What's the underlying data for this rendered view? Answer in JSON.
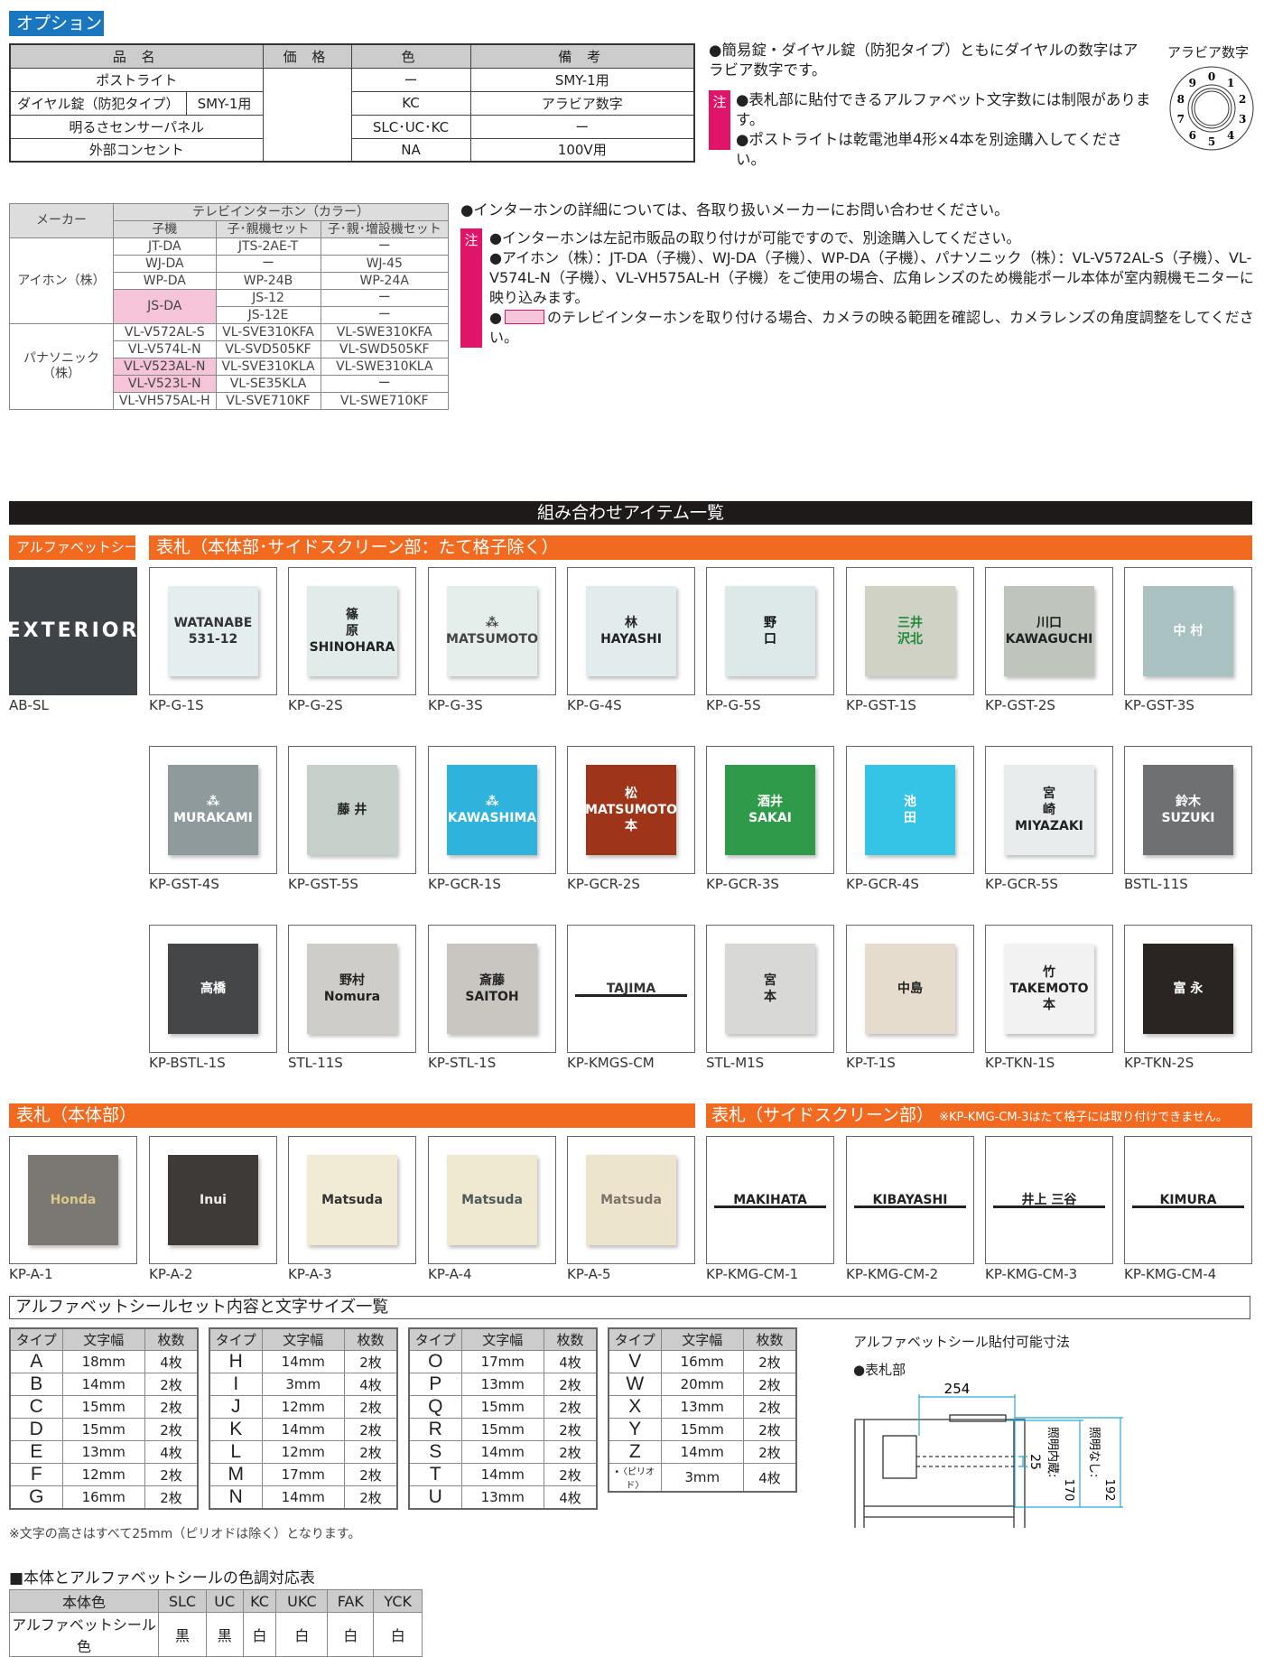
{
  "options": {
    "badge": "オプション",
    "headers": [
      "品 名",
      "価 格",
      "色",
      "備 考"
    ],
    "rows": [
      {
        "name": "ポストライト",
        "sub": "",
        "color": "ー",
        "note": "SMY-1用"
      },
      {
        "name": "ダイヤル錠（防犯タイプ）",
        "sub": "SMY-1用",
        "color": "KC",
        "note": "アラビア数字"
      },
      {
        "name": "明るさセンサーパネル",
        "sub": "",
        "color": "SLC･UC･KC",
        "note": "ー"
      },
      {
        "name": "外部コンセント",
        "sub": "",
        "color": "NA",
        "note": "100V用"
      }
    ],
    "note1": "●簡易錠・ダイヤル錠（防犯タイプ）ともにダイヤルの数字はアラビア数字です。",
    "chu_label": "注",
    "chu_notes": [
      "●表札部に貼付できるアルファベット文字数には制限があります。",
      "●ポストライトは乾電池単4形×4本を別途購入してください。"
    ],
    "dial_label": "アラビア数字",
    "dial_digits": [
      "0",
      "1",
      "2",
      "3",
      "4",
      "5",
      "6",
      "7",
      "8",
      "9"
    ]
  },
  "intercom": {
    "maker_header": "メーカー",
    "group_header": "テレビインターホン（カラー）",
    "sub_headers": [
      "子機",
      "子･親機セット",
      "子･親･増設機セット"
    ],
    "highlight_color": "#f6c4d8",
    "highlighted": [
      "JS-DA",
      "VL-V523AL-N",
      "VL-V523L-N"
    ],
    "makers": [
      {
        "name": "アイホン（株）",
        "rows": [
          [
            "JT-DA",
            "JTS-2AE-T",
            "ー"
          ],
          [
            "WJ-DA",
            "ー",
            "WJ-45"
          ],
          [
            "WP-DA",
            "WP-24B",
            "WP-24A"
          ],
          [
            "JS-DA",
            "JS-12",
            "ー"
          ],
          [
            null,
            "JS-12E",
            "ー"
          ]
        ]
      },
      {
        "name": "パナソニック（株）",
        "rows": [
          [
            "VL-V572AL-S",
            "VL-SVE310KFA",
            "VL-SWE310KFA"
          ],
          [
            "VL-V574L-N",
            "VL-SVD505KF",
            "VL-SWD505KF"
          ],
          [
            "VL-V523AL-N",
            "VL-SVE310KLA",
            "VL-SWE310KLA"
          ],
          [
            "VL-V523L-N",
            "VL-SE35KLA",
            "ー"
          ],
          [
            "VL-VH575AL-H",
            "VL-SVE710KF",
            "VL-SWE710KF"
          ]
        ]
      }
    ],
    "note1": "●インターホンの詳細については、各取り扱いメーカーにお問い合わせください。",
    "chu_label": "注",
    "chu_notes": [
      "●インターホンは左記市販品の取り付けが可能ですので、別途購入してください。",
      "●アイホン（株）：JT-DA（子機）、WJ-DA（子機）、WP-DA（子機）、パナソニック（株）：VL-V572AL-S（子機）、VL-V574L-N（子機）、VL-VH575AL-H（子機）をご使用の場合、広角レンズのため機能ポール本体が室内親機モニターに映り込みます。"
    ],
    "chu_note3_prefix": "●",
    "chu_note3": "のテレビインターホンを取り付ける場合、カメラの映る範囲を確認し、カメラレンズの角度調整をしてください。"
  },
  "items": {
    "title": "組み合わせアイテム一覧",
    "sec_alpha": "アルファベットシール",
    "sec_main": "表札（本体部･サイドスクリーン部：たて格子除く）",
    "sec_body": "表札（本体部）",
    "sec_side": "表札（サイドスクリーン部）",
    "sec_side_note": "※KP-KMG-CM-3はたて格子には取り付けできません。",
    "rows": [
      [
        {
          "label": "AB-SL",
          "text": "EXTERIOR",
          "bg": "#3d4347",
          "fg": "#ffffff",
          "full": true
        },
        {
          "label": "KP-G-1S",
          "text": "WATANABE\n531-12",
          "bg": "#e4eeee",
          "fg": "#333333"
        },
        {
          "label": "KP-G-2S",
          "text": "篠\n原\nSHINOHARA",
          "bg": "#e1ebea",
          "fg": "#222222"
        },
        {
          "label": "KP-G-3S",
          "text": "⁂\nMATSUMOTO",
          "bg": "#e6eeec",
          "fg": "#444444"
        },
        {
          "label": "KP-G-4S",
          "text": "林\nHAYASHI",
          "bg": "#e3ecec",
          "fg": "#222222"
        },
        {
          "label": "KP-G-5S",
          "text": "野\n口",
          "bg": "#dce9e8",
          "fg": "#111111"
        },
        {
          "label": "KP-GST-1S",
          "text": "三井\n沢北",
          "bg": "#cfd2c4",
          "fg": "#1d8a3a"
        },
        {
          "label": "KP-GST-2S",
          "text": "川口\nKAWAGUCHI",
          "bg": "#bfc4bd",
          "fg": "#222222"
        },
        {
          "label": "KP-GST-3S",
          "text": "中 村",
          "bg": "#a9c1c0",
          "fg": "#ffffff"
        }
      ],
      [
        {
          "label": "KP-GST-4S",
          "text": "⁂\nMURAKAMI",
          "bg": "#8e9a9b",
          "fg": "#ffffff"
        },
        {
          "label": "KP-GST-5S",
          "text": "藤 井",
          "bg": "#c6d0cb",
          "fg": "#222222"
        },
        {
          "label": "KP-GCR-1S",
          "text": "⁂\nKAWASHIMA",
          "bg": "#2fb3dc",
          "fg": "#ffffff"
        },
        {
          "label": "KP-GCR-2S",
          "text": "松\nMATSUMOTO\n本",
          "bg": "#9e3418",
          "fg": "#ffffff"
        },
        {
          "label": "KP-GCR-3S",
          "text": "酒井\nSAKAI",
          "bg": "#2e9a4a",
          "fg": "#ffffff"
        },
        {
          "label": "KP-GCR-4S",
          "text": "池\n田",
          "bg": "#35c3e6",
          "fg": "#ffffff"
        },
        {
          "label": "KP-GCR-5S",
          "text": "宮\n崎\nMIYAZAKI",
          "bg": "#e9ecec",
          "fg": "#222222"
        },
        {
          "label": "BSTL-11S",
          "text": "鈴木\nSUZUKI",
          "bg": "#6e7071",
          "fg": "#ffffff"
        }
      ],
      [
        {
          "label": "KP-BSTL-1S",
          "text": "高橋",
          "bg": "#454647",
          "fg": "#ffffff"
        },
        {
          "label": "STL-11S",
          "text": "野村\nNomura",
          "bg": "#cfcdc9",
          "fg": "#222222"
        },
        {
          "label": "KP-STL-1S",
          "text": "斎藤\nSAITOH",
          "bg": "#c9c6c1",
          "fg": "#222222"
        },
        {
          "label": "KP-KMGS-CM",
          "text": "TAJIMA",
          "bg": "#ffffff",
          "fg": "#333333",
          "bar": true
        },
        {
          "label": "STL-M1S",
          "text": "宮\n本",
          "bg": "#d8d8d6",
          "fg": "#222222"
        },
        {
          "label": "KP-T-1S",
          "text": "中島",
          "bg": "#e6dccd",
          "fg": "#222222"
        },
        {
          "label": "KP-TKN-1S",
          "text": "竹\nTAKEMOTO\n本",
          "bg": "#f2f2f2",
          "fg": "#222222"
        },
        {
          "label": "KP-TKN-2S",
          "text": "富 永",
          "bg": "#2a2522",
          "fg": "#ffffff"
        }
      ],
      [
        {
          "label": "KP-A-1",
          "text": "Honda",
          "bg": "#7b7772",
          "fg": "#d8c98a"
        },
        {
          "label": "KP-A-2",
          "text": "Inui",
          "bg": "#3d3a37",
          "fg": "#eeeeee"
        },
        {
          "label": "KP-A-3",
          "text": "Matsuda",
          "bg": "#f1ead4",
          "fg": "#333333"
        },
        {
          "label": "KP-A-4",
          "text": "Matsuda",
          "bg": "#efe8d0",
          "fg": "#4e5a5a"
        },
        {
          "label": "KP-A-5",
          "text": "Matsuda",
          "bg": "#ece4cc",
          "fg": "#7d7167"
        },
        {
          "label": "KP-KMG-CM-1",
          "text": "MAKIHATA",
          "bg": "#ffffff",
          "fg": "#222222",
          "bar": true
        },
        {
          "label": "KP-KMG-CM-2",
          "text": "KIBAYASHI",
          "bg": "#ffffff",
          "fg": "#222222",
          "bar": true
        },
        {
          "label": "KP-KMG-CM-3",
          "text": "井上 三谷",
          "bg": "#ffffff",
          "fg": "#222222",
          "bar": true
        },
        {
          "label": "KP-KMG-CM-4",
          "text": "KIMURA",
          "bg": "#ffffff",
          "fg": "#222222",
          "bar": true
        }
      ]
    ]
  },
  "alphabet": {
    "title": "アルファベットシールセット内容と文字サイズ一覧",
    "headers": [
      "タイプ",
      "文字幅",
      "枚数"
    ],
    "groups": [
      [
        [
          "A",
          "18mm",
          "4枚"
        ],
        [
          "B",
          "14mm",
          "2枚"
        ],
        [
          "C",
          "15mm",
          "2枚"
        ],
        [
          "D",
          "15mm",
          "2枚"
        ],
        [
          "E",
          "13mm",
          "4枚"
        ],
        [
          "F",
          "12mm",
          "2枚"
        ],
        [
          "G",
          "16mm",
          "2枚"
        ]
      ],
      [
        [
          "H",
          "14mm",
          "2枚"
        ],
        [
          "I",
          "3mm",
          "4枚"
        ],
        [
          "J",
          "12mm",
          "2枚"
        ],
        [
          "K",
          "14mm",
          "2枚"
        ],
        [
          "L",
          "12mm",
          "2枚"
        ],
        [
          "M",
          "17mm",
          "2枚"
        ],
        [
          "N",
          "14mm",
          "2枚"
        ]
      ],
      [
        [
          "O",
          "17mm",
          "4枚"
        ],
        [
          "P",
          "13mm",
          "2枚"
        ],
        [
          "Q",
          "15mm",
          "2枚"
        ],
        [
          "R",
          "15mm",
          "2枚"
        ],
        [
          "S",
          "14mm",
          "2枚"
        ],
        [
          "T",
          "14mm",
          "2枚"
        ],
        [
          "U",
          "13mm",
          "4枚"
        ]
      ],
      [
        [
          "V",
          "16mm",
          "2枚"
        ],
        [
          "W",
          "20mm",
          "2枚"
        ],
        [
          "X",
          "13mm",
          "2枚"
        ],
        [
          "Y",
          "15mm",
          "2枚"
        ],
        [
          "Z",
          "14mm",
          "2枚"
        ],
        [
          "•〈ピリオド〉",
          "3mm",
          "4枚"
        ]
      ]
    ],
    "footnote": "※文字の高さはすべて25mm（ピリオドは除く）となります。"
  },
  "diagram": {
    "title": "アルファベットシール貼付可能寸法",
    "sub": "●表札部",
    "width": "254",
    "height": "25",
    "lit_label": "照明内蔵:",
    "lit_value": "170",
    "unlit_label": "照明なし:",
    "unlit_value": "192",
    "line_color": "#2aa7d6"
  },
  "colortable": {
    "title": "■本体とアルファベットシールの色調対応表",
    "row1_label": "本体色",
    "colors": [
      "SLC",
      "UC",
      "KC",
      "UKC",
      "FAK",
      "YCK"
    ],
    "row2_label": "アルファベットシール色",
    "seal": [
      "黒",
      "黒",
      "白",
      "白",
      "白",
      "白"
    ]
  }
}
